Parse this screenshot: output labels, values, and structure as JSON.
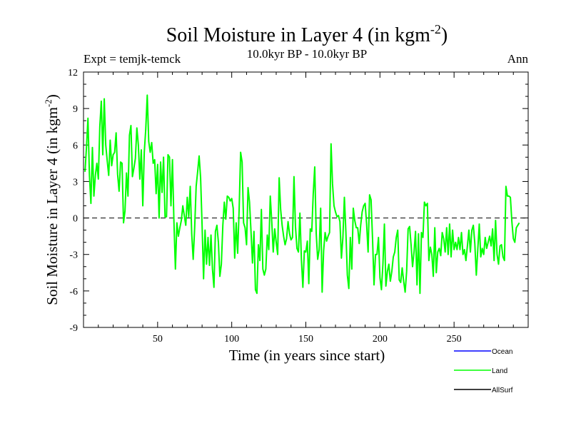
{
  "chart_data": {
    "type": "line",
    "title": "Soil Moisture in Layer 4 (in kgm",
    "title_sup": "-2",
    "title_close": ")",
    "subtitle": "10.0kyr BP - 10.0kyr BP",
    "expt_label": "Expt = temjk-temck",
    "season_label": "Ann",
    "xlabel": "Time (in years since start)",
    "ylabel": "Soil Moisture in Layer 4 (in kgm",
    "ylabel_sup": "-2",
    "ylabel_close": ")",
    "xlim": [
      0,
      300
    ],
    "ylim": [
      -9,
      12
    ],
    "x_ticks": [
      50,
      100,
      150,
      200,
      250
    ],
    "x_tick_labels": [
      "50",
      "100",
      "150",
      "200",
      "250"
    ],
    "y_ticks": [
      -9,
      -6,
      -3,
      0,
      3,
      6,
      9,
      12
    ],
    "y_tick_labels": [
      "-9",
      "-6",
      "-3",
      "0",
      "3",
      "6",
      "9",
      "12"
    ],
    "zero_line": 0,
    "legend_position": "bottom-right",
    "legend": [
      {
        "name": "Ocean",
        "color": "#0000ff"
      },
      {
        "name": "Land",
        "color": "#00ff00"
      },
      {
        "name": "AllSurf",
        "color": "#000000"
      }
    ],
    "series": [
      {
        "name": "Land",
        "color": "#00ff00",
        "x_start": 1,
        "x_step": 1,
        "values": [
          3.8,
          5.8,
          8.2,
          3.5,
          1.2,
          5.8,
          1.8,
          3.5,
          4.5,
          3.2,
          7.5,
          9.6,
          5.2,
          9.8,
          6.0,
          4.7,
          3.5,
          6.4,
          4.3,
          5.2,
          5.4,
          7.0,
          3.6,
          2.2,
          4.6,
          4.5,
          -0.4,
          0.6,
          3.7,
          1.8,
          6.8,
          7.6,
          3.4,
          4.1,
          4.9,
          7.4,
          6.0,
          3.2,
          5.6,
          1.0,
          5.4,
          7.3,
          10.1,
          6.3,
          5.4,
          6.2,
          4.5,
          4.8,
          2.0,
          4.4,
          0.0,
          4.6,
          2.1,
          5.0,
          0.1,
          0.1,
          5.2,
          5.0,
          1.0,
          4.8,
          -0.3,
          -4.2,
          -0.4,
          -1.5,
          -0.8,
          -0.2,
          1.0,
          0.2,
          -0.6,
          1.7,
          0.1,
          2.6,
          -1.3,
          -3.4,
          -0.8,
          2.6,
          3.8,
          5.1,
          3.3,
          -0.6,
          -5.0,
          -1.0,
          -3.8,
          -1.6,
          -3.9,
          -1.4,
          -4.2,
          -5.7,
          -1.1,
          -0.6,
          -2.0,
          -4.8,
          -3.8,
          -0.6,
          1.3,
          -0.1,
          1.8,
          1.7,
          1.4,
          1.6,
          0.8,
          -3.3,
          -0.4,
          -2.9,
          0.7,
          5.4,
          4.6,
          -0.4,
          -0.8,
          -2.2,
          2.5,
          1.3,
          -1.1,
          -3.7,
          -1.1,
          -5.9,
          -6.2,
          -2.2,
          -3.5,
          0.7,
          -4.2,
          -4.7,
          -4.2,
          -1.4,
          -2.6,
          1.8,
          -0.3,
          -2.8,
          -0.9,
          -2.0,
          -3.0,
          3.3,
          0.7,
          -0.6,
          -1.5,
          -2.2,
          -1.7,
          -0.3,
          -1.3,
          -1.8,
          -1.6,
          3.4,
          -0.7,
          -2.5,
          -2.8,
          0.4,
          -3.4,
          -5.7,
          -2.7,
          -2.8,
          -1.9,
          -5.4,
          -0.9,
          -1.1,
          2.0,
          4.2,
          -1.3,
          -3.4,
          -2.6,
          0.8,
          -6.1,
          -2.7,
          -1.2,
          -1.9,
          -1.5,
          -1.2,
          6.1,
          2.8,
          1.0,
          0.5,
          0.1,
          0.2,
          -0.3,
          -3.3,
          -1.6,
          1.7,
          -1.1,
          -4.7,
          -5.8,
          -1.6,
          -4.2,
          0.8,
          -0.2,
          -0.8,
          -0.8,
          -2.1,
          -0.6,
          0.5,
          1.0,
          1.2,
          -0.5,
          -2.8,
          1.9,
          1.5,
          -1.7,
          -5.5,
          -3.0,
          -3.0,
          -1.6,
          -4.9,
          -5.9,
          -3.8,
          -0.5,
          -5.6,
          -4.4,
          -3.8,
          -5.2,
          -4.4,
          -3.2,
          -2.8,
          -1.6,
          -1.0,
          -5.1,
          -5.3,
          -4.1,
          -5.2,
          -6.1,
          -4.4,
          -0.9,
          -0.7,
          -2.2,
          -4.0,
          -2.8,
          -1.1,
          -5.5,
          -1.3,
          -6.2,
          -1.2,
          -1.6,
          1.3,
          1.0,
          1.2,
          -3.5,
          -2.4,
          -3.0,
          -4.8,
          -0.8,
          -4.5,
          -2.8,
          -2.5,
          -3.1,
          -1.2,
          -1.7,
          -2.8,
          -0.8,
          -3.0,
          -0.5,
          -3.2,
          -1.0,
          -2.6,
          -2.0,
          -2.6,
          -1.6,
          -2.6,
          -1.2,
          -3.0,
          -2.6,
          -3.5,
          -2.3,
          -1.0,
          -2.8,
          -1.0,
          -0.6,
          -2.1,
          -4.7,
          -2.6,
          -0.5,
          -3.2,
          -2.5,
          -3.0,
          -1.6,
          -2.5,
          -2.0,
          -1.5,
          -2.3,
          -0.9,
          -3.5,
          -0.2,
          -3.0,
          -3.8,
          -2.3,
          -2.2,
          -3.2,
          -3.5,
          2.6,
          1.8,
          1.8,
          1.7,
          -0.3,
          -1.7,
          -2.0,
          -0.8,
          -0.6,
          -0.4
        ]
      }
    ]
  }
}
